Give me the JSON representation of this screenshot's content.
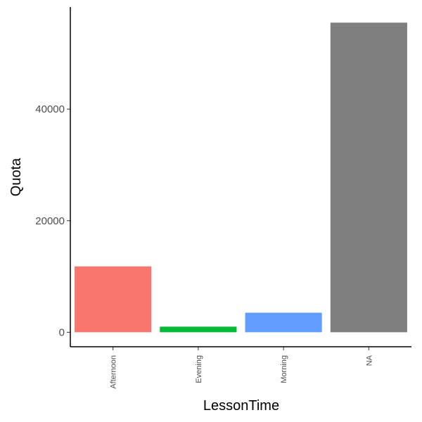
{
  "chart_data": {
    "type": "bar",
    "title": "",
    "xlabel": "LessonTime",
    "ylabel": "Quota",
    "categories": [
      "Afternoon",
      "Evening",
      "Morning",
      "NA"
    ],
    "values": [
      11800,
      1000,
      3500,
      55500
    ],
    "colors": [
      "#F8766D",
      "#00BA38",
      "#619CFF",
      "#7F7F7F"
    ],
    "yticks": [
      0,
      20000,
      40000
    ],
    "ytick_labels": [
      "0",
      "20000",
      "40000"
    ],
    "ylim": [
      -2600,
      58300
    ],
    "grid": false,
    "legend": "none"
  }
}
